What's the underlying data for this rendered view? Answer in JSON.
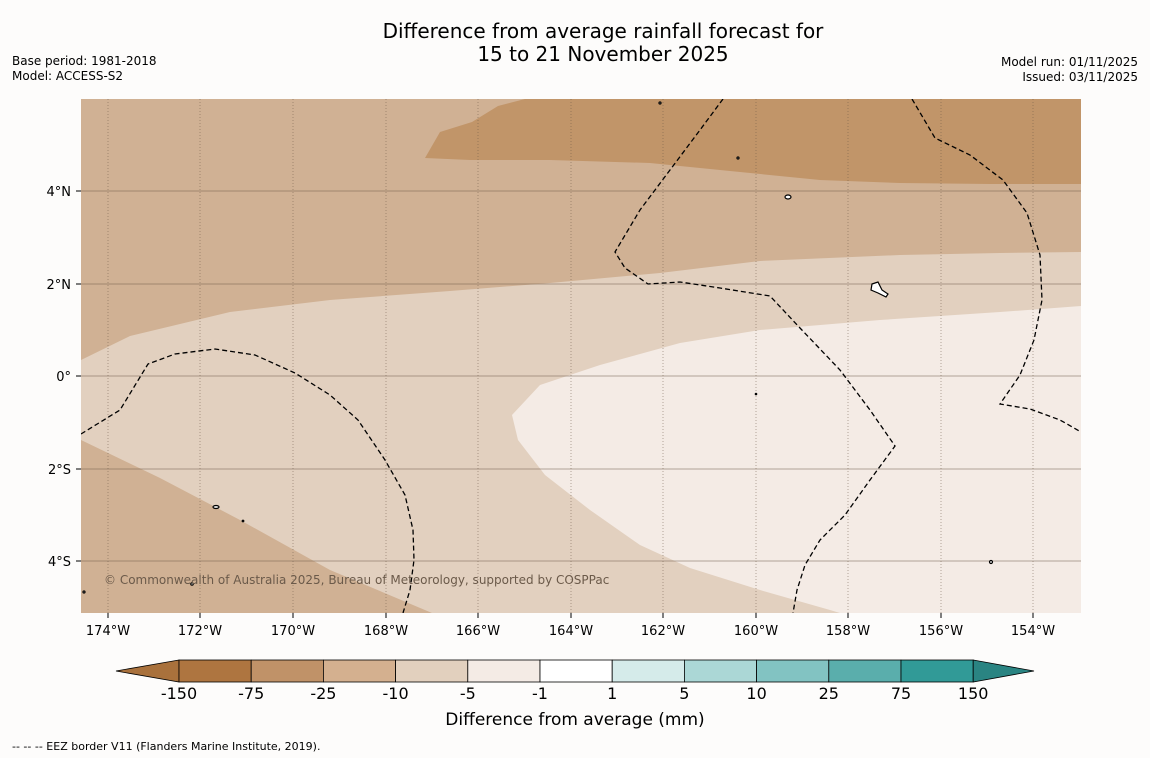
{
  "header": {
    "title_line1": "Difference from average rainfall forecast for",
    "title_line2": "15 to 21 November 2025",
    "base_period": "Base period: 1981-2018",
    "model": "Model: ACCESS-S2",
    "model_run": "Model run: 01/11/2025",
    "issued": "Issued: 03/11/2025"
  },
  "map": {
    "lon_ticks": [
      "174°W",
      "172°W",
      "170°W",
      "168°W",
      "166°W",
      "164°W",
      "162°W",
      "160°W",
      "158°W",
      "156°W",
      "154°W"
    ],
    "lat_ticks": [
      "4°N",
      "2°N",
      "0°",
      "2°S",
      "4°S"
    ],
    "copyright": "© Commonwealth of Australia 2025, Bureau of Meteorology, supported by COSPPac"
  },
  "colorbar": {
    "labels": [
      "-150",
      "-75",
      "-25",
      "-10",
      "-5",
      "-1",
      "1",
      "5",
      "10",
      "25",
      "75",
      "150"
    ],
    "colors": [
      "#a9713c",
      "#ae7540",
      "#c09268",
      "#d4b08f",
      "#e2d0be",
      "#f4ebe5",
      "#ffffff",
      "#d5ebea",
      "#abd7d6",
      "#82c3c2",
      "#5aaeac",
      "#319a97",
      "#2a8482"
    ],
    "title": "Difference from average (mm)"
  },
  "footnote": "--  --  -- EEZ border V11 (Flanders Marine Institute, 2019)."
}
